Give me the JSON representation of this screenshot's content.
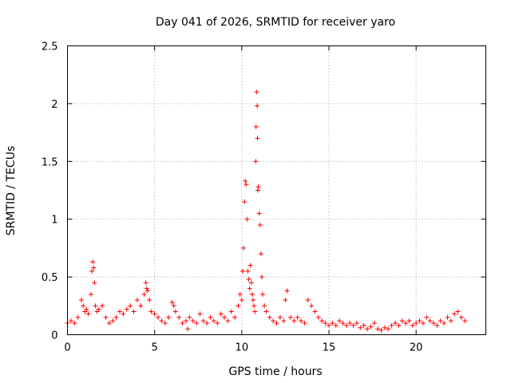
{
  "chart_data": {
    "type": "scatter",
    "title": "Day 041 of 2026, SRMTID for receiver yaro",
    "xlabel": "GPS time / hours",
    "ylabel": "SRMTID / TECUs",
    "xlim": [
      0,
      24
    ],
    "ylim": [
      0,
      2.5
    ],
    "xticks": [
      0,
      5,
      10,
      15,
      20
    ],
    "xtick_labels": [
      "0",
      "5",
      "10",
      "15",
      "20"
    ],
    "yticks": [
      0,
      0.5,
      1,
      1.5,
      2,
      2.5
    ],
    "ytick_labels": [
      "0",
      "0.5",
      "1",
      "1.5",
      "2",
      "2.5"
    ],
    "grid": true,
    "marker": "+",
    "color": "#ff0000",
    "series": [
      {
        "name": "SRMTID",
        "x": [
          0.0,
          0.2,
          0.4,
          0.6,
          0.8,
          0.9,
          1.0,
          1.1,
          1.2,
          1.35,
          1.4,
          1.45,
          1.5,
          1.55,
          1.6,
          1.7,
          1.8,
          2.0,
          2.2,
          2.4,
          2.6,
          2.8,
          3.0,
          3.2,
          3.4,
          3.6,
          3.8,
          4.0,
          4.2,
          4.4,
          4.5,
          4.55,
          4.6,
          4.7,
          4.8,
          5.0,
          5.2,
          5.4,
          5.6,
          5.8,
          6.0,
          6.1,
          6.2,
          6.4,
          6.6,
          6.8,
          6.9,
          7.0,
          7.2,
          7.4,
          7.6,
          7.8,
          8.0,
          8.2,
          8.4,
          8.6,
          8.8,
          9.0,
          9.2,
          9.4,
          9.6,
          9.8,
          9.9,
          10.0,
          10.05,
          10.1,
          10.15,
          10.2,
          10.25,
          10.3,
          10.35,
          10.4,
          10.45,
          10.5,
          10.55,
          10.6,
          10.65,
          10.7,
          10.75,
          10.8,
          10.82,
          10.85,
          10.88,
          10.9,
          10.92,
          10.95,
          11.0,
          11.05,
          11.1,
          11.15,
          11.2,
          11.3,
          11.4,
          11.6,
          11.8,
          12.0,
          12.2,
          12.4,
          12.5,
          12.6,
          12.8,
          13.0,
          13.2,
          13.4,
          13.6,
          13.8,
          14.0,
          14.2,
          14.4,
          14.6,
          14.8,
          15.0,
          15.2,
          15.4,
          15.6,
          15.8,
          16.0,
          16.2,
          16.4,
          16.6,
          16.8,
          17.0,
          17.2,
          17.4,
          17.6,
          17.8,
          18.0,
          18.2,
          18.4,
          18.6,
          18.8,
          19.0,
          19.2,
          19.4,
          19.6,
          19.8,
          20.0,
          20.2,
          20.4,
          20.6,
          20.8,
          21.0,
          21.2,
          21.4,
          21.6,
          21.8,
          22.0,
          22.2,
          22.4,
          22.6,
          22.8
        ],
        "y": [
          0.1,
          0.12,
          0.1,
          0.15,
          0.3,
          0.25,
          0.2,
          0.22,
          0.18,
          0.35,
          0.55,
          0.63,
          0.58,
          0.45,
          0.25,
          0.2,
          0.22,
          0.25,
          0.15,
          0.1,
          0.12,
          0.15,
          0.2,
          0.18,
          0.22,
          0.25,
          0.2,
          0.3,
          0.25,
          0.35,
          0.45,
          0.4,
          0.38,
          0.3,
          0.2,
          0.18,
          0.15,
          0.12,
          0.1,
          0.15,
          0.28,
          0.25,
          0.2,
          0.15,
          0.1,
          0.12,
          0.05,
          0.15,
          0.12,
          0.1,
          0.18,
          0.12,
          0.1,
          0.15,
          0.12,
          0.1,
          0.18,
          0.15,
          0.12,
          0.2,
          0.15,
          0.25,
          0.35,
          0.3,
          0.55,
          0.75,
          1.15,
          1.33,
          1.3,
          1.0,
          0.55,
          0.48,
          0.4,
          0.6,
          0.45,
          0.35,
          0.3,
          0.25,
          0.2,
          1.5,
          1.8,
          2.1,
          1.98,
          1.7,
          1.25,
          1.28,
          1.05,
          0.95,
          0.7,
          0.5,
          0.35,
          0.25,
          0.2,
          0.15,
          0.12,
          0.1,
          0.15,
          0.12,
          0.3,
          0.38,
          0.15,
          0.12,
          0.15,
          0.12,
          0.1,
          0.3,
          0.25,
          0.2,
          0.15,
          0.12,
          0.1,
          0.08,
          0.1,
          0.08,
          0.12,
          0.1,
          0.08,
          0.1,
          0.08,
          0.1,
          0.06,
          0.08,
          0.05,
          0.07,
          0.1,
          0.05,
          0.04,
          0.06,
          0.05,
          0.08,
          0.1,
          0.08,
          0.12,
          0.1,
          0.12,
          0.08,
          0.1,
          0.12,
          0.1,
          0.15,
          0.12,
          0.1,
          0.08,
          0.12,
          0.1,
          0.15,
          0.12,
          0.18,
          0.2,
          0.15,
          0.12
        ]
      }
    ]
  }
}
